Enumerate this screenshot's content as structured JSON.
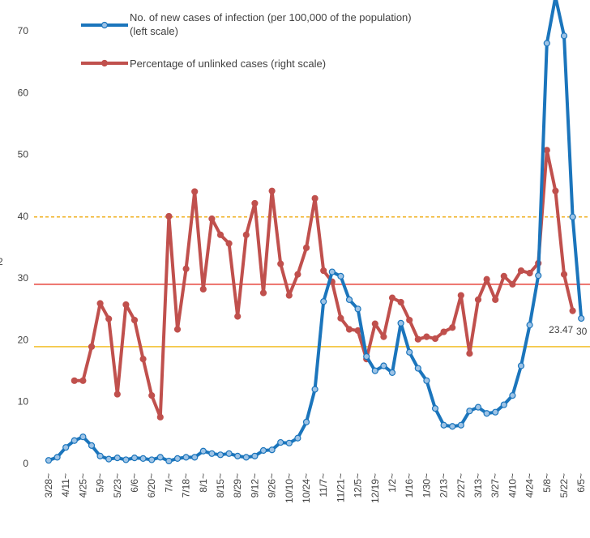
{
  "chart_data": {
    "type": "line",
    "categories": [
      "3/28~",
      null,
      "4/11~",
      null,
      "4/25~",
      null,
      "5/9~",
      null,
      "5/23~",
      null,
      "6/6~",
      null,
      "6/20~",
      null,
      "7/4~",
      null,
      "7/18~",
      null,
      "8/1~",
      null,
      "8/15~",
      null,
      "8/29~",
      null,
      "9/12~",
      null,
      "9/26~",
      null,
      "10/10~",
      null,
      "10/24~",
      null,
      "11/7~",
      null,
      "11/21~",
      null,
      "12/5~",
      null,
      "12/19~",
      null,
      "1/2~",
      null,
      "1/16~",
      null,
      "1/30~",
      null,
      "2/13~",
      null,
      "2/27~",
      null,
      "3/13~",
      null,
      "3/27~",
      null,
      "4/10~",
      null,
      "4/24~",
      null,
      "5/8~",
      null,
      "5/22~",
      null,
      "6/5~"
    ],
    "series": [
      {
        "name": "No. of new cases of infection (per 100,000 of the population)\n(left scale)",
        "color": "#1b75bc",
        "marker_fill": "#9dc3e6",
        "values": [
          0.5,
          1.0,
          2.6,
          3.7,
          4.3,
          2.9,
          1.2,
          0.7,
          0.9,
          0.6,
          0.9,
          0.8,
          0.6,
          1.0,
          0.4,
          0.8,
          1.0,
          1.0,
          2.0,
          1.6,
          1.4,
          1.6,
          1.2,
          1.0,
          1.2,
          2.1,
          2.2,
          3.4,
          3.3,
          4.1,
          6.7,
          12.0,
          26.2,
          31.0,
          30.3,
          26.5,
          25.0,
          17.3,
          15.0,
          15.8,
          14.7,
          22.7,
          18.0,
          15.4,
          13.4,
          8.9,
          6.2,
          6.0,
          6.2,
          8.5,
          9.1,
          8.1,
          8.3,
          9.5,
          11.0,
          15.8,
          22.4,
          30.4,
          68.0,
          75.5,
          69.2,
          39.9,
          23.47
        ],
        "value_labels": [
          null,
          null,
          null,
          null,
          null,
          null,
          null,
          null,
          null,
          null,
          null,
          null,
          null,
          null,
          null,
          null,
          null,
          null,
          null,
          null,
          null,
          null,
          null,
          null,
          null,
          null,
          null,
          null,
          null,
          null,
          null,
          null,
          null,
          null,
          null,
          null,
          null,
          null,
          null,
          null,
          null,
          null,
          null,
          null,
          null,
          null,
          null,
          null,
          null,
          null,
          null,
          null,
          null,
          null,
          null,
          null,
          null,
          null,
          null,
          null,
          null,
          null,
          "23.47"
        ]
      },
      {
        "name": "Percentage of unlinked cases (right scale)",
        "color": "#c0504d",
        "marker_fill": "#c0504d",
        "values": [
          null,
          null,
          null,
          13.4,
          13.4,
          18.9,
          25.9,
          23.4,
          11.2,
          25.7,
          23.2,
          16.9,
          11.0,
          7.5,
          40.0,
          21.7,
          31.5,
          44.0,
          28.2,
          39.6,
          37.0,
          35.6,
          23.8,
          37.0,
          42.1,
          27.6,
          44.1,
          32.3,
          27.2,
          30.6,
          34.9,
          42.9,
          31.2,
          29.4,
          23.5,
          21.7,
          21.5,
          16.9,
          22.6,
          20.5,
          26.8,
          26.1,
          23.2,
          20.1,
          20.5,
          20.2,
          21.3,
          22.0,
          27.2,
          17.8,
          26.5,
          29.8,
          26.5,
          30.3,
          29.0,
          31.2,
          30.8,
          32.4,
          50.7,
          44.1,
          30.6,
          24.7,
          null
        ]
      }
    ],
    "reference_lines": [
      {
        "value": 39.9,
        "color": "#f0b020",
        "dashed": true
      },
      {
        "value": 29.0,
        "color": "#e8453c",
        "dashed": false
      },
      {
        "value": 18.9,
        "color": "#f2c12e",
        "dashed": false
      }
    ],
    "annotations": [
      "2",
      "30"
    ],
    "ylim": [
      0,
      75
    ],
    "yticks": [
      0,
      10,
      20,
      30,
      40,
      50,
      60,
      70
    ],
    "grid": false
  }
}
